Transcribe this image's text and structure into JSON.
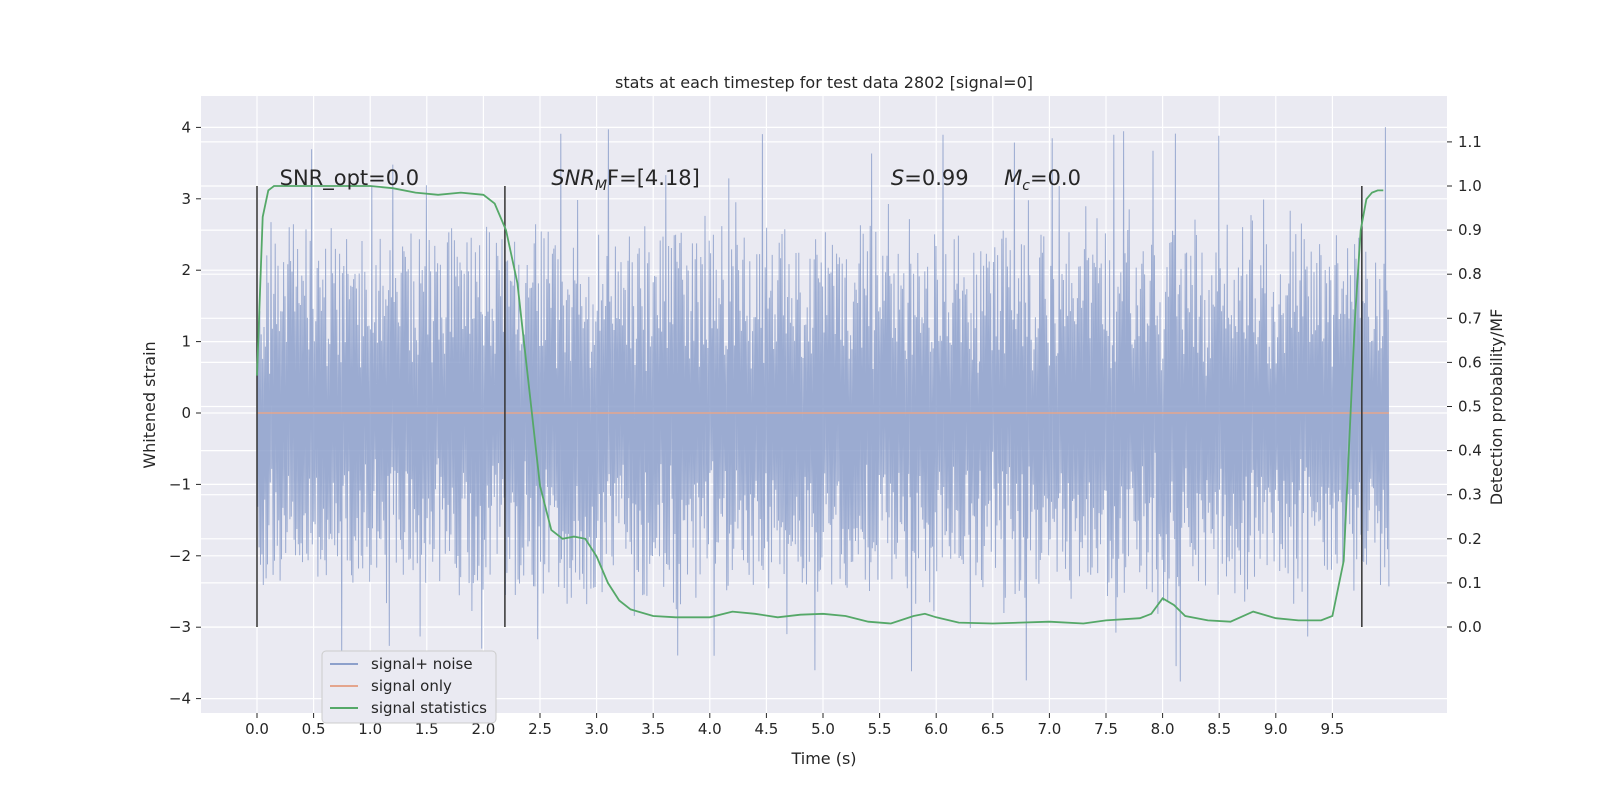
{
  "chart_data": {
    "type": "line",
    "title": "stats at each timestep for test data 2802 [signal=0]",
    "xlabel": "Time (s)",
    "ylabel": "Whitened strain",
    "ylabel_right": "Detection probability/MF",
    "xlim": [
      -0.5,
      10.5
    ],
    "ylim": [
      -4.2,
      4.4
    ],
    "ylim_right": [
      -0.2,
      1.2
    ],
    "x_ticks": [
      "0.0",
      "0.5",
      "1.0",
      "1.5",
      "2.0",
      "2.5",
      "3.0",
      "3.5",
      "4.0",
      "4.5",
      "5.0",
      "5.5",
      "6.0",
      "6.5",
      "7.0",
      "7.5",
      "8.0",
      "8.5",
      "9.0",
      "9.5"
    ],
    "y_ticks": [
      "4",
      "3",
      "2",
      "1",
      "0",
      "−1",
      "−2",
      "−3",
      "−4"
    ],
    "y_ticks_right": [
      "1.1",
      "1.0",
      "0.9",
      "0.8",
      "0.7",
      "0.6",
      "0.5",
      "0.4",
      "0.3",
      "0.2",
      "0.1",
      "0.0"
    ],
    "grid": true,
    "legend_position": "lower-left",
    "series": [
      {
        "name": "signal+ noise",
        "color": "#8da0cb",
        "envelope": {
          "x": [
            0.0,
            10.0
          ],
          "typical_min": -2.5,
          "typical_max": 2.5,
          "extreme_min": -3.8,
          "extreme_max": 4.05
        }
      },
      {
        "name": "signal only",
        "color": "#e4a58d",
        "x": [
          0.0,
          10.0
        ],
        "y": [
          0.0,
          0.0
        ]
      },
      {
        "name": "signal statistics",
        "color": "#55a868",
        "axis": "right",
        "x": [
          0.0,
          0.05,
          0.1,
          0.15,
          0.2,
          0.3,
          0.5,
          1.0,
          1.2,
          1.4,
          1.6,
          1.8,
          2.0,
          2.1,
          2.2,
          2.3,
          2.4,
          2.5,
          2.6,
          2.7,
          2.8,
          2.9,
          3.0,
          3.1,
          3.2,
          3.3,
          3.5,
          3.7,
          4.0,
          4.2,
          4.4,
          4.6,
          4.8,
          5.0,
          5.2,
          5.4,
          5.6,
          5.8,
          5.9,
          6.0,
          6.2,
          6.5,
          7.0,
          7.3,
          7.5,
          7.8,
          7.9,
          8.0,
          8.1,
          8.2,
          8.4,
          8.6,
          8.8,
          9.0,
          9.2,
          9.4,
          9.5,
          9.6,
          9.7,
          9.75,
          9.8,
          9.85,
          9.9,
          9.95
        ],
        "y": [
          0.57,
          0.93,
          0.99,
          1.0,
          1.0,
          1.0,
          1.0,
          1.0,
          0.995,
          0.985,
          0.98,
          0.985,
          0.98,
          0.96,
          0.9,
          0.78,
          0.55,
          0.32,
          0.22,
          0.2,
          0.205,
          0.2,
          0.16,
          0.1,
          0.06,
          0.04,
          0.025,
          0.022,
          0.022,
          0.035,
          0.03,
          0.022,
          0.028,
          0.03,
          0.025,
          0.012,
          0.008,
          0.025,
          0.03,
          0.022,
          0.01,
          0.008,
          0.012,
          0.008,
          0.015,
          0.02,
          0.03,
          0.065,
          0.05,
          0.025,
          0.015,
          0.012,
          0.035,
          0.02,
          0.015,
          0.015,
          0.025,
          0.15,
          0.7,
          0.9,
          0.97,
          0.985,
          0.99,
          0.99
        ]
      }
    ],
    "vertical_markers": {
      "color": "#333333",
      "x": [
        0.0,
        2.19,
        9.76
      ],
      "y_range_right": [
        0.0,
        1.0
      ]
    },
    "annotations": [
      {
        "text": "SNR_opt=0.0",
        "x": 0.2
      },
      {
        "text_main": "SNR",
        "text_sub": "M",
        "text_rest": "F=[4.18]",
        "x": 2.6
      },
      {
        "text_main": "S",
        "text_rest": "=0.99",
        "x": 5.6
      },
      {
        "text_main": "M",
        "text_sub": "c",
        "text_rest": "=0.0",
        "x": 6.6
      }
    ],
    "annotation_y_right": 1.0
  },
  "legend": {
    "noise_label": "signal+ noise",
    "signal_label": "signal only",
    "stat_label": "signal statistics"
  }
}
